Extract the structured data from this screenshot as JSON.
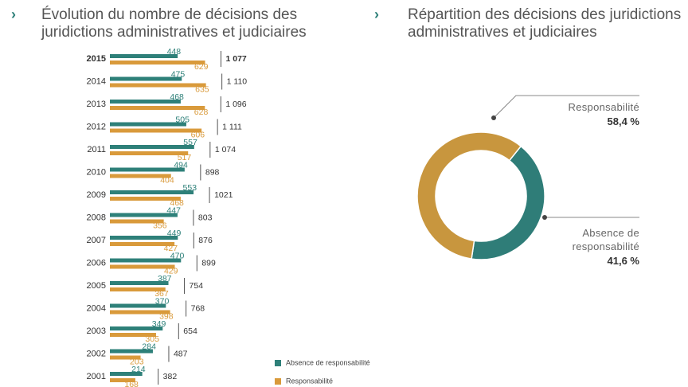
{
  "chart_data": [
    {
      "type": "bar",
      "orientation": "horizontal",
      "title": "Évolution du nombre de décisions des juridictions administratives et judiciaires",
      "categories": [
        "2015",
        "2014",
        "2013",
        "2012",
        "2011",
        "2010",
        "2009",
        "2008",
        "2007",
        "2006",
        "2005",
        "2004",
        "2003",
        "2002",
        "2001"
      ],
      "series": [
        {
          "name": "Absence de responsabilité",
          "color": "#2e8079",
          "values": [
            448,
            475,
            468,
            505,
            557,
            494,
            553,
            447,
            449,
            470,
            387,
            370,
            349,
            284,
            214
          ]
        },
        {
          "name": "Responsabilité",
          "color": "#d99a3b",
          "values": [
            629,
            635,
            628,
            606,
            517,
            404,
            468,
            356,
            427,
            429,
            367,
            398,
            305,
            203,
            168
          ]
        }
      ],
      "totals": [
        1077,
        1110,
        1096,
        1111,
        1074,
        898,
        1021,
        803,
        876,
        899,
        754,
        768,
        654,
        487,
        382
      ],
      "total_labels": [
        "1 077",
        "1 110",
        "1 096",
        "1 111",
        "1 074",
        "898",
        "1021",
        "803",
        "876",
        "899",
        "754",
        "768",
        "654",
        "487",
        "382"
      ],
      "xlim": [
        0,
        700
      ]
    },
    {
      "type": "pie",
      "donut": true,
      "title": "Répartition des décisions des juridictions administratives et judiciaires",
      "categories": [
        "Responsabilité",
        "Absence de responsabilité"
      ],
      "values": [
        58.4,
        41.6
      ],
      "value_labels": [
        "58,4 %",
        "41,6 %"
      ],
      "colors": [
        "#c8963e",
        "#2f7d78"
      ]
    }
  ]
}
